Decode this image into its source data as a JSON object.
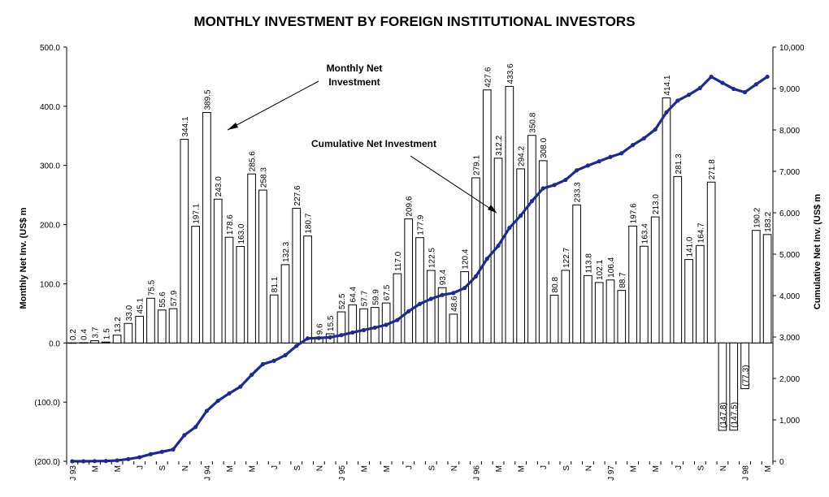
{
  "chart_data": {
    "type": "bar+line",
    "title": "MONTHLY INVESTMENT BY FOREIGN INSTITUTIONAL INVESTORS",
    "ylabel_left": "Monthly Net Inv. (US$ m",
    "ylabel_right": "Cumulative Net Inv. (US$ m",
    "ylim_left": [
      -200,
      500
    ],
    "ylim_right": [
      0,
      10000
    ],
    "yticks_left": [
      "500.0",
      "400.0",
      "300.0",
      "200.0",
      "100.0",
      "0.0",
      "(100.0)",
      "(200.0)"
    ],
    "yticks_right": [
      "10,000",
      "9,000",
      "8,000",
      "7,000",
      "6,000",
      "5,000",
      "4,000",
      "3,000",
      "2,000",
      "1,000",
      "0"
    ],
    "x_tick_labels": [
      "J 93",
      "M",
      "M",
      "J",
      "S",
      "N",
      "J 94",
      "M",
      "M",
      "J",
      "S",
      "N",
      "J 95",
      "M",
      "M",
      "J",
      "S",
      "N",
      "J 96",
      "M",
      "M",
      "J",
      "S",
      "N",
      "J 97",
      "M",
      "M",
      "J",
      "S",
      "N",
      "J 98",
      "M"
    ],
    "series": [
      {
        "name": "Monthly Net Investment",
        "type": "bar",
        "values": [
          0.2,
          0.4,
          3.7,
          1.5,
          13.2,
          33.0,
          45.1,
          75.5,
          55.6,
          57.9,
          344.1,
          197.1,
          389.5,
          243.0,
          178.6,
          163.0,
          285.6,
          258.3,
          81.1,
          132.3,
          227.6,
          180.7,
          9.6,
          15.5,
          52.5,
          64.4,
          57.7,
          59.9,
          67.5,
          117.0,
          209.6,
          177.9,
          122.5,
          93.4,
          48.6,
          120.4,
          279.1,
          427.6,
          312.2,
          433.6,
          294.2,
          350.8,
          308.0,
          80.8,
          122.7,
          233.3,
          113.8,
          102.1,
          106.4,
          88.7,
          197.6,
          163.4,
          213.0,
          414.1,
          281.3,
          141.0,
          164.7,
          271.8,
          -147.8,
          -147.5,
          -77.3,
          190.2,
          183.2
        ],
        "labels": [
          "0.2",
          "0.4",
          "3.7",
          "1.5",
          "13.2",
          "33.0",
          "45.1",
          "75.5",
          "55.6",
          "57.9",
          "344.1",
          "197.1",
          "389.5",
          "243.0",
          "178.6",
          "163.0",
          "285.6",
          "258.3",
          "81.1",
          "132.3",
          "227.6",
          "180.7",
          "9.6",
          "15.5",
          "52.5",
          "64.4",
          "57.7",
          "59.9",
          "67.5",
          "117.0",
          "209.6",
          "177.9",
          "122.5",
          "93.4",
          "48.6",
          "120.4",
          "279.1",
          "427.6",
          "312.2",
          "433.6",
          "294.2",
          "350.8",
          "308.0",
          "80.8",
          "122.7",
          "233.3",
          "113.8",
          "102.1",
          "106.4",
          "88.7",
          "197.6",
          "163.4",
          "213.0",
          "414.1",
          "281.3",
          "141.0",
          "164.7",
          "271.8",
          "(147.8)",
          "(147.5)",
          "(77.3)",
          "190.2",
          "183.2"
        ]
      },
      {
        "name": "Cumulative Net Investment",
        "type": "line",
        "color": "#1f2a8a",
        "values": [
          0,
          0,
          4,
          6,
          19,
          52,
          97,
          172,
          228,
          286,
          630,
          827,
          1217,
          1460,
          1638,
          1801,
          2087,
          2345,
          2426,
          2559,
          2786,
          2967,
          2977,
          2992,
          3045,
          3109,
          3167,
          3227,
          3294,
          3411,
          3621,
          3799,
          3921,
          4015,
          4063,
          4184,
          4463,
          4890,
          5203,
          5636,
          5931,
          6281,
          6589,
          6670,
          6793,
          7026,
          7140,
          7242,
          7348,
          7437,
          7635,
          7798,
          8011,
          8425,
          8707,
          8848,
          9012,
          9284,
          9136,
          8989,
          8911,
          9102,
          9285
        ]
      }
    ],
    "annotations": [
      {
        "text_lines": [
          "Monthly Net",
          "Investment"
        ]
      },
      {
        "text_lines": [
          "Cumulative Net Investment"
        ]
      }
    ]
  }
}
